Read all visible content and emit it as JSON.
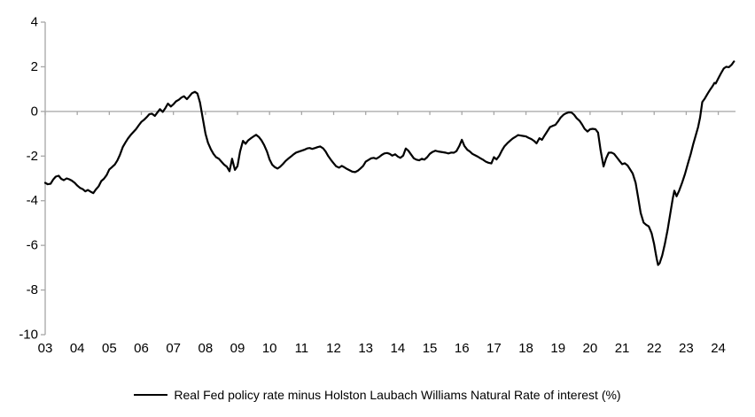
{
  "chart_data": {
    "type": "line",
    "title": "",
    "xlabel": "",
    "ylabel": "",
    "legend": "Real Fed policy rate minus Holston Laubach Williams Natural Rate of interest (%)",
    "legend_position": "bottom-center",
    "grid": "none",
    "ylim": [
      -10,
      4
    ],
    "y_tick_values": [
      4,
      2,
      0,
      -2,
      -4,
      -6,
      -8,
      -10
    ],
    "x_tick_labels": [
      "03",
      "04",
      "05",
      "06",
      "07",
      "08",
      "09",
      "10",
      "11",
      "12",
      "13",
      "14",
      "15",
      "16",
      "17",
      "18",
      "19",
      "20",
      "21",
      "22",
      "23",
      "24"
    ],
    "x_start_year": 2003,
    "x_axis_position": "at y = 0",
    "colors": {
      "line": "#000000",
      "axis": "#a6a6a6",
      "text": "#000000",
      "background": "#ffffff"
    },
    "series": [
      {
        "name": "Real Fed policy rate minus Holston Laubach Williams Natural Rate of interest (%)",
        "color": "#000000",
        "points": [
          [
            2003.0,
            -3.2
          ],
          [
            2003.08,
            -3.26
          ],
          [
            2003.17,
            -3.24
          ],
          [
            2003.25,
            -3.05
          ],
          [
            2003.33,
            -2.92
          ],
          [
            2003.42,
            -2.88
          ],
          [
            2003.5,
            -3.02
          ],
          [
            2003.58,
            -3.08
          ],
          [
            2003.67,
            -3.0
          ],
          [
            2003.75,
            -3.04
          ],
          [
            2003.83,
            -3.1
          ],
          [
            2003.92,
            -3.2
          ],
          [
            2004.0,
            -3.32
          ],
          [
            2004.08,
            -3.42
          ],
          [
            2004.17,
            -3.48
          ],
          [
            2004.25,
            -3.58
          ],
          [
            2004.33,
            -3.52
          ],
          [
            2004.42,
            -3.6
          ],
          [
            2004.5,
            -3.66
          ],
          [
            2004.58,
            -3.5
          ],
          [
            2004.67,
            -3.35
          ],
          [
            2004.75,
            -3.12
          ],
          [
            2004.83,
            -3.02
          ],
          [
            2004.92,
            -2.85
          ],
          [
            2005.0,
            -2.6
          ],
          [
            2005.08,
            -2.5
          ],
          [
            2005.17,
            -2.38
          ],
          [
            2005.25,
            -2.2
          ],
          [
            2005.33,
            -1.95
          ],
          [
            2005.42,
            -1.6
          ],
          [
            2005.5,
            -1.4
          ],
          [
            2005.58,
            -1.22
          ],
          [
            2005.67,
            -1.05
          ],
          [
            2005.75,
            -0.92
          ],
          [
            2005.83,
            -0.8
          ],
          [
            2005.92,
            -0.62
          ],
          [
            2006.0,
            -0.47
          ],
          [
            2006.08,
            -0.38
          ],
          [
            2006.17,
            -0.25
          ],
          [
            2006.25,
            -0.12
          ],
          [
            2006.33,
            -0.1
          ],
          [
            2006.42,
            -0.2
          ],
          [
            2006.5,
            -0.05
          ],
          [
            2006.58,
            0.1
          ],
          [
            2006.67,
            -0.02
          ],
          [
            2006.75,
            0.15
          ],
          [
            2006.83,
            0.35
          ],
          [
            2006.92,
            0.22
          ],
          [
            2007.0,
            0.32
          ],
          [
            2007.08,
            0.45
          ],
          [
            2007.17,
            0.52
          ],
          [
            2007.25,
            0.62
          ],
          [
            2007.33,
            0.68
          ],
          [
            2007.42,
            0.55
          ],
          [
            2007.5,
            0.68
          ],
          [
            2007.58,
            0.82
          ],
          [
            2007.67,
            0.88
          ],
          [
            2007.75,
            0.8
          ],
          [
            2007.83,
            0.4
          ],
          [
            2007.92,
            -0.35
          ],
          [
            2008.0,
            -1.0
          ],
          [
            2008.08,
            -1.4
          ],
          [
            2008.17,
            -1.7
          ],
          [
            2008.25,
            -1.9
          ],
          [
            2008.33,
            -2.05
          ],
          [
            2008.42,
            -2.12
          ],
          [
            2008.5,
            -2.25
          ],
          [
            2008.58,
            -2.38
          ],
          [
            2008.67,
            -2.48
          ],
          [
            2008.75,
            -2.68
          ],
          [
            2008.83,
            -2.12
          ],
          [
            2008.92,
            -2.62
          ],
          [
            2009.0,
            -2.45
          ],
          [
            2009.08,
            -1.8
          ],
          [
            2009.17,
            -1.32
          ],
          [
            2009.25,
            -1.45
          ],
          [
            2009.33,
            -1.3
          ],
          [
            2009.42,
            -1.2
          ],
          [
            2009.5,
            -1.12
          ],
          [
            2009.58,
            -1.05
          ],
          [
            2009.67,
            -1.15
          ],
          [
            2009.75,
            -1.3
          ],
          [
            2009.83,
            -1.5
          ],
          [
            2009.92,
            -1.8
          ],
          [
            2010.0,
            -2.15
          ],
          [
            2010.08,
            -2.38
          ],
          [
            2010.17,
            -2.5
          ],
          [
            2010.25,
            -2.56
          ],
          [
            2010.33,
            -2.48
          ],
          [
            2010.42,
            -2.35
          ],
          [
            2010.5,
            -2.22
          ],
          [
            2010.58,
            -2.12
          ],
          [
            2010.67,
            -2.02
          ],
          [
            2010.75,
            -1.92
          ],
          [
            2010.83,
            -1.84
          ],
          [
            2010.92,
            -1.8
          ],
          [
            2011.0,
            -1.76
          ],
          [
            2011.08,
            -1.72
          ],
          [
            2011.17,
            -1.66
          ],
          [
            2011.25,
            -1.64
          ],
          [
            2011.33,
            -1.68
          ],
          [
            2011.42,
            -1.64
          ],
          [
            2011.5,
            -1.6
          ],
          [
            2011.58,
            -1.57
          ],
          [
            2011.67,
            -1.65
          ],
          [
            2011.75,
            -1.8
          ],
          [
            2011.83,
            -2.0
          ],
          [
            2011.92,
            -2.18
          ],
          [
            2012.0,
            -2.32
          ],
          [
            2012.08,
            -2.46
          ],
          [
            2012.17,
            -2.52
          ],
          [
            2012.25,
            -2.44
          ],
          [
            2012.33,
            -2.5
          ],
          [
            2012.42,
            -2.58
          ],
          [
            2012.5,
            -2.64
          ],
          [
            2012.58,
            -2.7
          ],
          [
            2012.67,
            -2.72
          ],
          [
            2012.75,
            -2.66
          ],
          [
            2012.83,
            -2.56
          ],
          [
            2012.92,
            -2.44
          ],
          [
            2013.0,
            -2.25
          ],
          [
            2013.08,
            -2.18
          ],
          [
            2013.17,
            -2.1
          ],
          [
            2013.25,
            -2.08
          ],
          [
            2013.33,
            -2.12
          ],
          [
            2013.42,
            -2.04
          ],
          [
            2013.5,
            -1.95
          ],
          [
            2013.58,
            -1.88
          ],
          [
            2013.67,
            -1.86
          ],
          [
            2013.75,
            -1.9
          ],
          [
            2013.83,
            -1.98
          ],
          [
            2013.92,
            -1.92
          ],
          [
            2014.0,
            -2.02
          ],
          [
            2014.08,
            -2.08
          ],
          [
            2014.17,
            -1.98
          ],
          [
            2014.25,
            -1.66
          ],
          [
            2014.33,
            -1.76
          ],
          [
            2014.42,
            -1.94
          ],
          [
            2014.5,
            -2.1
          ],
          [
            2014.58,
            -2.16
          ],
          [
            2014.67,
            -2.19
          ],
          [
            2014.75,
            -2.12
          ],
          [
            2014.83,
            -2.16
          ],
          [
            2014.92,
            -2.05
          ],
          [
            2015.0,
            -1.9
          ],
          [
            2015.08,
            -1.82
          ],
          [
            2015.17,
            -1.76
          ],
          [
            2015.25,
            -1.79
          ],
          [
            2015.33,
            -1.81
          ],
          [
            2015.42,
            -1.83
          ],
          [
            2015.5,
            -1.85
          ],
          [
            2015.58,
            -1.88
          ],
          [
            2015.67,
            -1.84
          ],
          [
            2015.75,
            -1.85
          ],
          [
            2015.83,
            -1.78
          ],
          [
            2015.92,
            -1.55
          ],
          [
            2016.0,
            -1.27
          ],
          [
            2016.08,
            -1.55
          ],
          [
            2016.17,
            -1.72
          ],
          [
            2016.25,
            -1.8
          ],
          [
            2016.33,
            -1.9
          ],
          [
            2016.42,
            -1.97
          ],
          [
            2016.5,
            -2.03
          ],
          [
            2016.58,
            -2.1
          ],
          [
            2016.67,
            -2.17
          ],
          [
            2016.75,
            -2.25
          ],
          [
            2016.83,
            -2.3
          ],
          [
            2016.92,
            -2.33
          ],
          [
            2017.0,
            -2.05
          ],
          [
            2017.08,
            -2.15
          ],
          [
            2017.17,
            -1.98
          ],
          [
            2017.25,
            -1.75
          ],
          [
            2017.33,
            -1.56
          ],
          [
            2017.42,
            -1.42
          ],
          [
            2017.5,
            -1.32
          ],
          [
            2017.58,
            -1.22
          ],
          [
            2017.67,
            -1.14
          ],
          [
            2017.75,
            -1.06
          ],
          [
            2017.83,
            -1.08
          ],
          [
            2017.92,
            -1.1
          ],
          [
            2018.0,
            -1.12
          ],
          [
            2018.08,
            -1.18
          ],
          [
            2018.17,
            -1.24
          ],
          [
            2018.25,
            -1.32
          ],
          [
            2018.33,
            -1.43
          ],
          [
            2018.42,
            -1.2
          ],
          [
            2018.5,
            -1.27
          ],
          [
            2018.58,
            -1.08
          ],
          [
            2018.67,
            -0.88
          ],
          [
            2018.75,
            -0.7
          ],
          [
            2018.83,
            -0.65
          ],
          [
            2018.92,
            -0.6
          ],
          [
            2019.0,
            -0.45
          ],
          [
            2019.08,
            -0.28
          ],
          [
            2019.17,
            -0.15
          ],
          [
            2019.25,
            -0.08
          ],
          [
            2019.33,
            -0.04
          ],
          [
            2019.42,
            -0.05
          ],
          [
            2019.5,
            -0.15
          ],
          [
            2019.58,
            -0.3
          ],
          [
            2019.67,
            -0.42
          ],
          [
            2019.75,
            -0.58
          ],
          [
            2019.83,
            -0.78
          ],
          [
            2019.92,
            -0.9
          ],
          [
            2020.0,
            -0.8
          ],
          [
            2020.08,
            -0.78
          ],
          [
            2020.17,
            -0.8
          ],
          [
            2020.25,
            -0.95
          ],
          [
            2020.33,
            -1.75
          ],
          [
            2020.42,
            -2.47
          ],
          [
            2020.5,
            -2.1
          ],
          [
            2020.58,
            -1.85
          ],
          [
            2020.67,
            -1.84
          ],
          [
            2020.75,
            -1.9
          ],
          [
            2020.83,
            -2.05
          ],
          [
            2020.92,
            -2.22
          ],
          [
            2021.0,
            -2.36
          ],
          [
            2021.08,
            -2.32
          ],
          [
            2021.17,
            -2.42
          ],
          [
            2021.25,
            -2.6
          ],
          [
            2021.33,
            -2.78
          ],
          [
            2021.42,
            -3.2
          ],
          [
            2021.5,
            -3.85
          ],
          [
            2021.58,
            -4.55
          ],
          [
            2021.67,
            -4.98
          ],
          [
            2021.75,
            -5.08
          ],
          [
            2021.83,
            -5.15
          ],
          [
            2021.92,
            -5.45
          ],
          [
            2022.0,
            -5.95
          ],
          [
            2022.04,
            -6.3
          ],
          [
            2022.08,
            -6.6
          ],
          [
            2022.12,
            -6.88
          ],
          [
            2022.17,
            -6.8
          ],
          [
            2022.25,
            -6.45
          ],
          [
            2022.33,
            -5.95
          ],
          [
            2022.42,
            -5.3
          ],
          [
            2022.5,
            -4.6
          ],
          [
            2022.58,
            -3.9
          ],
          [
            2022.63,
            -3.55
          ],
          [
            2022.7,
            -3.8
          ],
          [
            2022.78,
            -3.55
          ],
          [
            2022.87,
            -3.2
          ],
          [
            2022.96,
            -2.8
          ],
          [
            2023.05,
            -2.35
          ],
          [
            2023.14,
            -1.9
          ],
          [
            2023.22,
            -1.45
          ],
          [
            2023.3,
            -1.05
          ],
          [
            2023.37,
            -0.7
          ],
          [
            2023.43,
            -0.28
          ],
          [
            2023.5,
            0.42
          ],
          [
            2023.58,
            0.58
          ],
          [
            2023.67,
            0.8
          ],
          [
            2023.75,
            0.98
          ],
          [
            2023.83,
            1.15
          ],
          [
            2023.88,
            1.28
          ],
          [
            2023.92,
            1.25
          ],
          [
            2024.0,
            1.48
          ],
          [
            2024.08,
            1.7
          ],
          [
            2024.17,
            1.92
          ],
          [
            2024.25,
            2.0
          ],
          [
            2024.33,
            1.98
          ],
          [
            2024.42,
            2.1
          ],
          [
            2024.49,
            2.24
          ]
        ]
      }
    ]
  }
}
